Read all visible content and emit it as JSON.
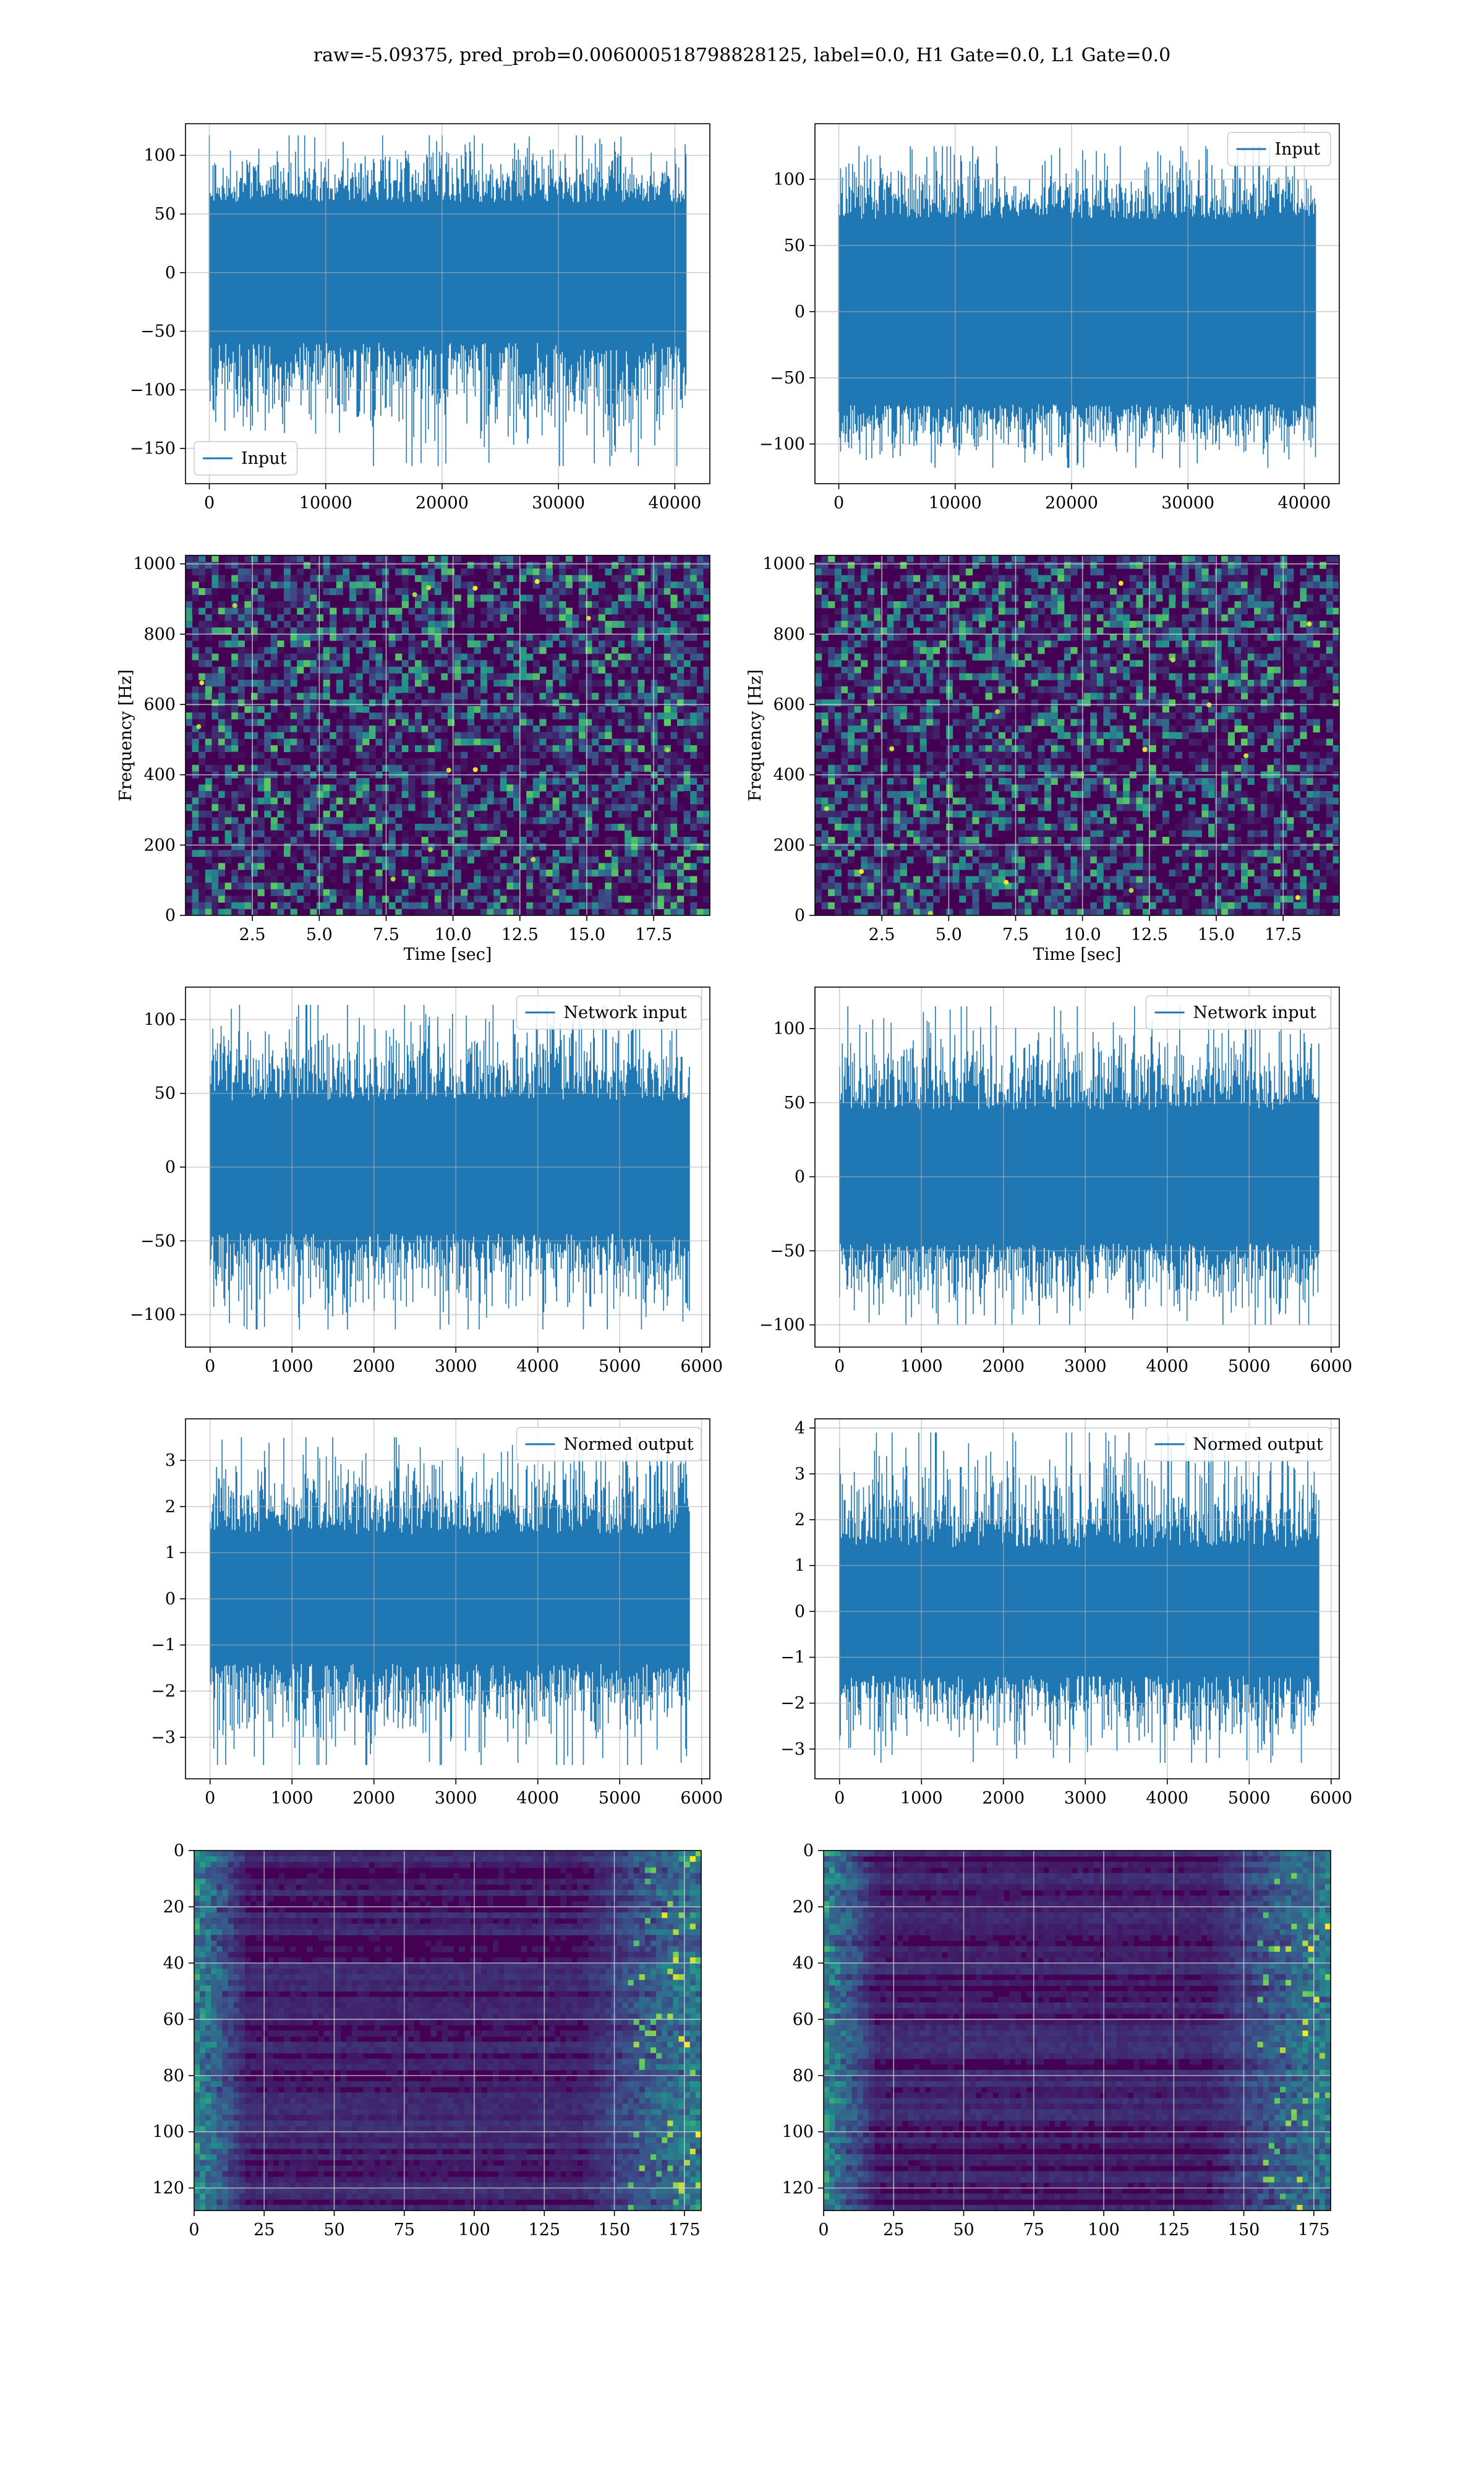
{
  "figure": {
    "suptitle": "raw=-5.09375, pred_prob=0.006000518798828125, label=0.0, H1 Gate=0.0, L1 Gate=0.0"
  },
  "colors": {
    "line": "#1f77b4",
    "grid": "#b0b0b0",
    "viridis_low": "#440154",
    "viridis_mid": "#21918c",
    "viridis_high": "#fde725"
  },
  "chart_data": [
    {
      "id": "input-h1",
      "type": "line",
      "legend": {
        "labels": [
          "Input"
        ],
        "loc": "lower-left"
      },
      "xlim": [
        -2048,
        43008
      ],
      "ylim": [
        -180,
        127
      ],
      "xticks": [
        0,
        10000,
        20000,
        30000,
        40000
      ],
      "yticks": [
        -150,
        -100,
        -50,
        0,
        50,
        100
      ],
      "xlabel": "",
      "ylabel": "",
      "signal": {
        "x_range": [
          0,
          40960
        ],
        "core_amp": 60,
        "spike_max": 117,
        "spike_min": -165,
        "symmetric": false
      },
      "grid": true
    },
    {
      "id": "input-l1",
      "type": "line",
      "legend": {
        "labels": [
          "Input"
        ],
        "loc": "upper-right"
      },
      "xlim": [
        -2048,
        43008
      ],
      "ylim": [
        -130,
        142
      ],
      "xticks": [
        0,
        10000,
        20000,
        30000,
        40000
      ],
      "yticks": [
        -100,
        -50,
        0,
        50,
        100
      ],
      "xlabel": "",
      "ylabel": "",
      "signal": {
        "x_range": [
          0,
          40960
        ],
        "core_amp": 70,
        "spike_max": 125,
        "spike_min": -118,
        "symmetric": false
      },
      "grid": true
    },
    {
      "id": "spectrogram-h1",
      "type": "heatmap",
      "xlim": [
        0,
        19.6
      ],
      "ylim": [
        0,
        1024
      ],
      "xticks": [
        2.5,
        5.0,
        7.5,
        10.0,
        12.5,
        15.0,
        17.5
      ],
      "xtick_labels": [
        "2.5",
        "5.0",
        "7.5",
        "10.0",
        "12.5",
        "15.0",
        "17.5"
      ],
      "yticks": [
        0,
        200,
        400,
        600,
        800,
        1000
      ],
      "xlabel": "Time [sec]",
      "ylabel": "Frequency [Hz]",
      "colormap": "viridis",
      "pattern": "noise",
      "grid": true
    },
    {
      "id": "spectrogram-l1",
      "type": "heatmap",
      "xlim": [
        0,
        19.6
      ],
      "ylim": [
        0,
        1024
      ],
      "xticks": [
        2.5,
        5.0,
        7.5,
        10.0,
        12.5,
        15.0,
        17.5
      ],
      "xtick_labels": [
        "2.5",
        "5.0",
        "7.5",
        "10.0",
        "12.5",
        "15.0",
        "17.5"
      ],
      "yticks": [
        0,
        200,
        400,
        600,
        800,
        1000
      ],
      "xlabel": "Time [sec]",
      "ylabel": "Frequency [Hz]",
      "colormap": "viridis",
      "pattern": "noise",
      "grid": true
    },
    {
      "id": "network-input-h1",
      "type": "line",
      "legend": {
        "labels": [
          "Network input"
        ],
        "loc": "upper-right"
      },
      "xlim": [
        -300,
        6100
      ],
      "ylim": [
        -122,
        122
      ],
      "xticks": [
        0,
        1000,
        2000,
        3000,
        4000,
        5000,
        6000
      ],
      "yticks": [
        -100,
        -50,
        0,
        50,
        100
      ],
      "xlabel": "",
      "ylabel": "",
      "signal": {
        "x_range": [
          0,
          5850
        ],
        "core_amp": 45,
        "spike_max": 110,
        "spike_min": -110,
        "symmetric": true
      },
      "grid": true
    },
    {
      "id": "network-input-l1",
      "type": "line",
      "legend": {
        "labels": [
          "Network input"
        ],
        "loc": "upper-right"
      },
      "xlim": [
        -300,
        6100
      ],
      "ylim": [
        -115,
        128
      ],
      "xticks": [
        0,
        1000,
        2000,
        3000,
        4000,
        5000,
        6000
      ],
      "yticks": [
        -100,
        -50,
        0,
        50,
        100
      ],
      "xlabel": "",
      "ylabel": "",
      "signal": {
        "x_range": [
          0,
          5850
        ],
        "core_amp": 45,
        "spike_max": 115,
        "spike_min": -100,
        "symmetric": true
      },
      "grid": true
    },
    {
      "id": "normed-output-h1",
      "type": "line",
      "legend": {
        "labels": [
          "Normed output"
        ],
        "loc": "upper-right"
      },
      "xlim": [
        -300,
        6100
      ],
      "ylim": [
        -3.9,
        3.9
      ],
      "xticks": [
        0,
        1000,
        2000,
        3000,
        4000,
        5000,
        6000
      ],
      "yticks": [
        -3,
        -2,
        -1,
        0,
        1,
        2,
        3
      ],
      "xlabel": "",
      "ylabel": "",
      "signal": {
        "x_range": [
          0,
          5850
        ],
        "core_amp": 1.4,
        "spike_max": 3.5,
        "spike_min": -3.6,
        "symmetric": true
      },
      "grid": true
    },
    {
      "id": "normed-output-l1",
      "type": "line",
      "legend": {
        "labels": [
          "Normed output"
        ],
        "loc": "upper-right"
      },
      "xlim": [
        -300,
        6100
      ],
      "ylim": [
        -3.65,
        4.2
      ],
      "xticks": [
        0,
        1000,
        2000,
        3000,
        4000,
        5000,
        6000
      ],
      "yticks": [
        -3,
        -2,
        -1,
        0,
        1,
        2,
        3,
        4
      ],
      "xlabel": "",
      "ylabel": "",
      "signal": {
        "x_range": [
          0,
          5850
        ],
        "core_amp": 1.4,
        "spike_max": 3.9,
        "spike_min": -3.3,
        "symmetric": true
      },
      "grid": true
    },
    {
      "id": "feature-map-h1",
      "type": "heatmap",
      "xlim": [
        0,
        181
      ],
      "ylim": [
        128,
        0
      ],
      "xticks": [
        0,
        25,
        50,
        75,
        100,
        125,
        150,
        175
      ],
      "yticks": [
        0,
        20,
        40,
        60,
        80,
        100,
        120
      ],
      "xlabel": "",
      "ylabel": "",
      "colormap": "viridis",
      "pattern": "rows",
      "grid": true
    },
    {
      "id": "feature-map-l1",
      "type": "heatmap",
      "xlim": [
        0,
        181
      ],
      "ylim": [
        128,
        0
      ],
      "xticks": [
        0,
        25,
        50,
        75,
        100,
        125,
        150,
        175
      ],
      "yticks": [
        0,
        20,
        40,
        60,
        80,
        100,
        120
      ],
      "xlabel": "",
      "ylabel": "",
      "colormap": "viridis",
      "pattern": "rows",
      "grid": true
    }
  ]
}
